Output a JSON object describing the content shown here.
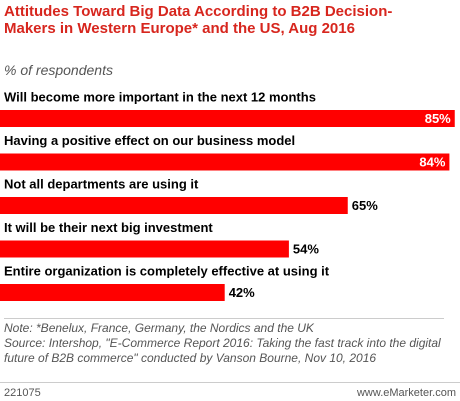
{
  "chart_data": {
    "type": "bar",
    "orientation": "horizontal",
    "title": "Attitudes Toward Big Data According to B2B Decision-Makers in Western Europe* and the US, Aug 2016",
    "subtitle": "% of respondents",
    "categories": [
      "Will become more important in the next 12 months",
      "Having a positive effect on our business model",
      "Not all departments are using it",
      "It will be their next big investment",
      "Entire organization is completely effective at using it"
    ],
    "values": [
      85,
      84,
      65,
      54,
      42
    ],
    "value_labels": [
      "85%",
      "84%",
      "65%",
      "54%",
      "42%"
    ],
    "color": "#ff0000",
    "note": "Note: *Benelux, France, Germany, the Nordics and the UK",
    "source": "Source: Intershop, \"E-Commerce Report 2016: Taking the fast track into the digital future of B2B commerce\" conducted by Vanson Bourne, Nov 10, 2016",
    "chart_id": "221075",
    "site": "www.eMarketer.com"
  }
}
